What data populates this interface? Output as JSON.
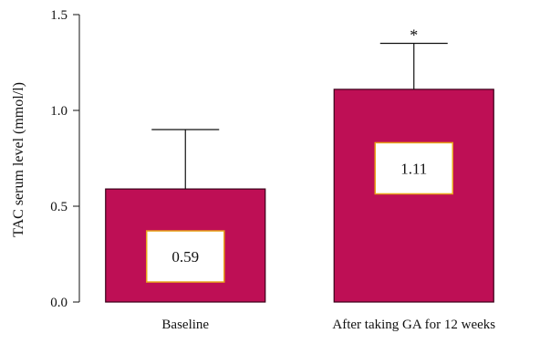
{
  "chart_data": {
    "type": "bar",
    "categories": [
      "Baseline",
      "After taking GA for 12 weeks"
    ],
    "values": [
      0.59,
      1.11
    ],
    "error_upper": [
      0.9,
      1.35
    ],
    "data_labels": [
      "0.59",
      "1.11"
    ],
    "significance_markers": [
      "",
      "*"
    ],
    "ylabel": "TAC serum level (mmol/l)",
    "xlabel": "",
    "ylim": [
      0,
      1.5
    ],
    "yticks": [
      0.0,
      0.5,
      1.0,
      1.5
    ],
    "ytick_labels": [
      "0.0",
      "0.5",
      "1.0",
      "1.5"
    ],
    "grid": false,
    "colors": {
      "bar_fill": "#be0f55",
      "bar_stroke": "#3a0019",
      "label_box_fill": "#ffffff",
      "label_box_stroke": "#e8a51a",
      "axis": "#111111"
    }
  }
}
